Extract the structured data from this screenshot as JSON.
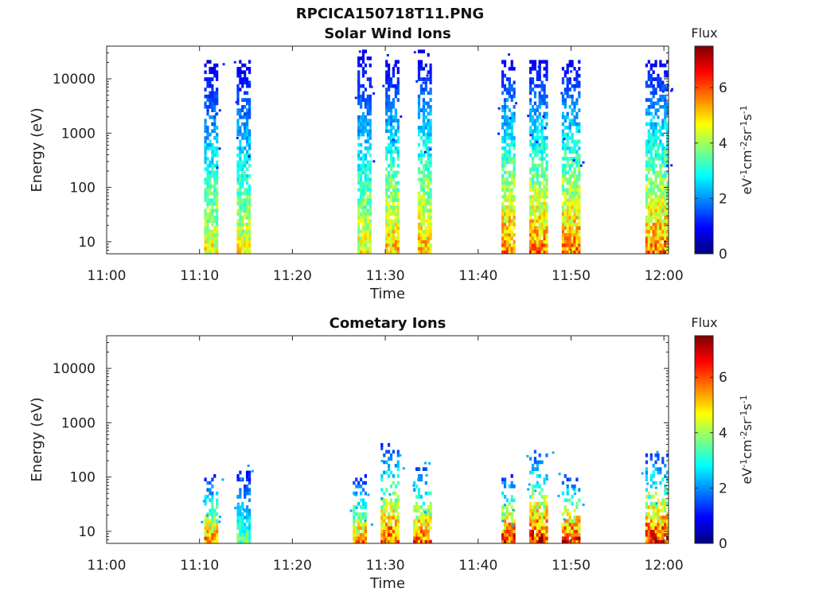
{
  "figure_title": "RPCICA150718T11.PNG",
  "colorscale": [
    "#00007f",
    "#0000ff",
    "#007fff",
    "#00ffff",
    "#7fff7f",
    "#ffff00",
    "#ff7f00",
    "#ff0000",
    "#7f0000"
  ],
  "chart_data": [
    {
      "type": "heatmap",
      "title": "Solar Wind Ions",
      "xlabel": "Time",
      "ylabel": "Energy (eV)",
      "yscale": "log",
      "ylim": [
        6,
        40000
      ],
      "xlim": [
        "11:00",
        "12:00:30"
      ],
      "x_ticks": [
        "11:00",
        "11:10",
        "11:20",
        "11:30",
        "11:40",
        "11:50",
        "12:00"
      ],
      "y_ticks": [
        10,
        100,
        1000,
        10000
      ],
      "colorbar": {
        "label": "Flux",
        "unit": "eV-1cm-2sr-1s-1",
        "range": [
          0,
          7.5
        ],
        "ticks": [
          0,
          2,
          4,
          6
        ]
      },
      "grid": false,
      "bursts": [
        {
          "start": "11:10:30",
          "end": "11:12:00",
          "e_max": 20000,
          "peak_flux": 5
        },
        {
          "start": "11:14:00",
          "end": "11:15:30",
          "e_max": 20000,
          "peak_flux": 5
        },
        {
          "start": "11:27:00",
          "end": "11:28:30",
          "e_max": 30000,
          "peak_flux": 5
        },
        {
          "start": "11:30:00",
          "end": "11:31:30",
          "e_max": 20000,
          "peak_flux": 5.5
        },
        {
          "start": "11:33:30",
          "end": "11:35:00",
          "e_max": 30000,
          "peak_flux": 5.5
        },
        {
          "start": "11:42:30",
          "end": "11:44:00",
          "e_max": 20000,
          "peak_flux": 6
        },
        {
          "start": "11:45:30",
          "end": "11:47:30",
          "e_max": 20000,
          "peak_flux": 6
        },
        {
          "start": "11:49:00",
          "end": "11:51:00",
          "e_max": 20000,
          "peak_flux": 6
        },
        {
          "start": "11:58:00",
          "end": "12:00:30",
          "e_max": 20000,
          "peak_flux": 6
        }
      ]
    },
    {
      "type": "heatmap",
      "title": "Cometary Ions",
      "xlabel": "Time",
      "ylabel": "Energy (eV)",
      "yscale": "log",
      "ylim": [
        6,
        40000
      ],
      "xlim": [
        "11:00",
        "12:00:30"
      ],
      "x_ticks": [
        "11:00",
        "11:10",
        "11:20",
        "11:30",
        "11:40",
        "11:50",
        "12:00"
      ],
      "y_ticks": [
        10,
        100,
        1000,
        10000
      ],
      "colorbar": {
        "label": "Flux",
        "unit": "eV-1cm-2sr-1s-1",
        "range": [
          0,
          7.5
        ],
        "ticks": [
          0,
          2,
          4,
          6
        ]
      },
      "grid": false,
      "bursts": [
        {
          "start": "11:10:30",
          "end": "11:12:00",
          "e_max": 100,
          "peak_flux": 6
        },
        {
          "start": "11:14:00",
          "end": "11:15:30",
          "e_max": 150,
          "peak_flux": 4
        },
        {
          "start": "11:26:30",
          "end": "11:28:00",
          "e_max": 100,
          "peak_flux": 6
        },
        {
          "start": "11:29:30",
          "end": "11:31:30",
          "e_max": 400,
          "peak_flux": 6.5
        },
        {
          "start": "11:33:00",
          "end": "11:35:00",
          "e_max": 150,
          "peak_flux": 6.5
        },
        {
          "start": "11:42:30",
          "end": "11:44:00",
          "e_max": 100,
          "peak_flux": 7
        },
        {
          "start": "11:45:30",
          "end": "11:47:30",
          "e_max": 300,
          "peak_flux": 7
        },
        {
          "start": "11:49:00",
          "end": "11:51:00",
          "e_max": 100,
          "peak_flux": 7
        },
        {
          "start": "11:58:00",
          "end": "12:00:30",
          "e_max": 250,
          "peak_flux": 7
        }
      ]
    }
  ]
}
